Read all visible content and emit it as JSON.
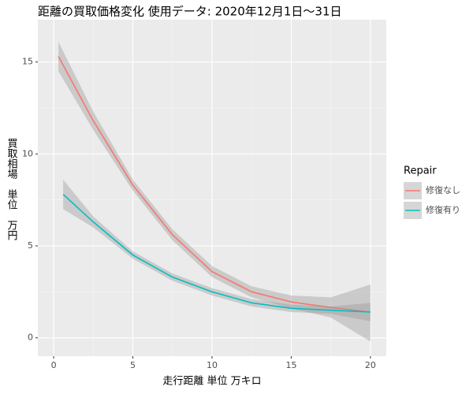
{
  "chart_data": {
    "type": "line",
    "title": "距離の買取価格変化 使用データ: 2020年12月1日～31日",
    "x_label": "走行距離 単位 万キロ",
    "y_label": "買取相場　単位　万円",
    "legend_title": "Repair",
    "xlim": [
      -1.0,
      21.0
    ],
    "xticks": [
      0,
      5,
      10,
      15,
      20
    ],
    "ylim": [
      -1.0,
      17.3
    ],
    "yticks": [
      0,
      5,
      10,
      15
    ],
    "grid": true,
    "legend": "right",
    "band_color": "#999999",
    "series": [
      {
        "name": "修復なし",
        "color": "#f8766d",
        "x": [
          0.3,
          2.5,
          5,
          7.5,
          10,
          12.5,
          15,
          17.5,
          20
        ],
        "values": [
          15.3,
          11.8,
          8.3,
          5.6,
          3.6,
          2.5,
          1.95,
          1.65,
          1.4
        ],
        "upper": [
          16.1,
          12.3,
          8.6,
          5.9,
          3.9,
          2.8,
          2.3,
          2.2,
          2.9
        ],
        "lower": [
          14.5,
          11.3,
          8.0,
          5.3,
          3.3,
          2.2,
          1.6,
          1.1,
          -0.2
        ]
      },
      {
        "name": "修復有り",
        "color": "#00bfc4",
        "x": [
          0.6,
          2.5,
          5,
          7.5,
          10,
          12.5,
          15,
          17.5,
          20
        ],
        "values": [
          7.8,
          6.3,
          4.5,
          3.3,
          2.5,
          1.9,
          1.6,
          1.5,
          1.4
        ],
        "upper": [
          8.6,
          6.6,
          4.7,
          3.5,
          2.7,
          2.1,
          1.8,
          1.7,
          1.9
        ],
        "lower": [
          7.0,
          6.0,
          4.3,
          3.1,
          2.3,
          1.7,
          1.4,
          1.3,
          0.9
        ]
      }
    ]
  }
}
